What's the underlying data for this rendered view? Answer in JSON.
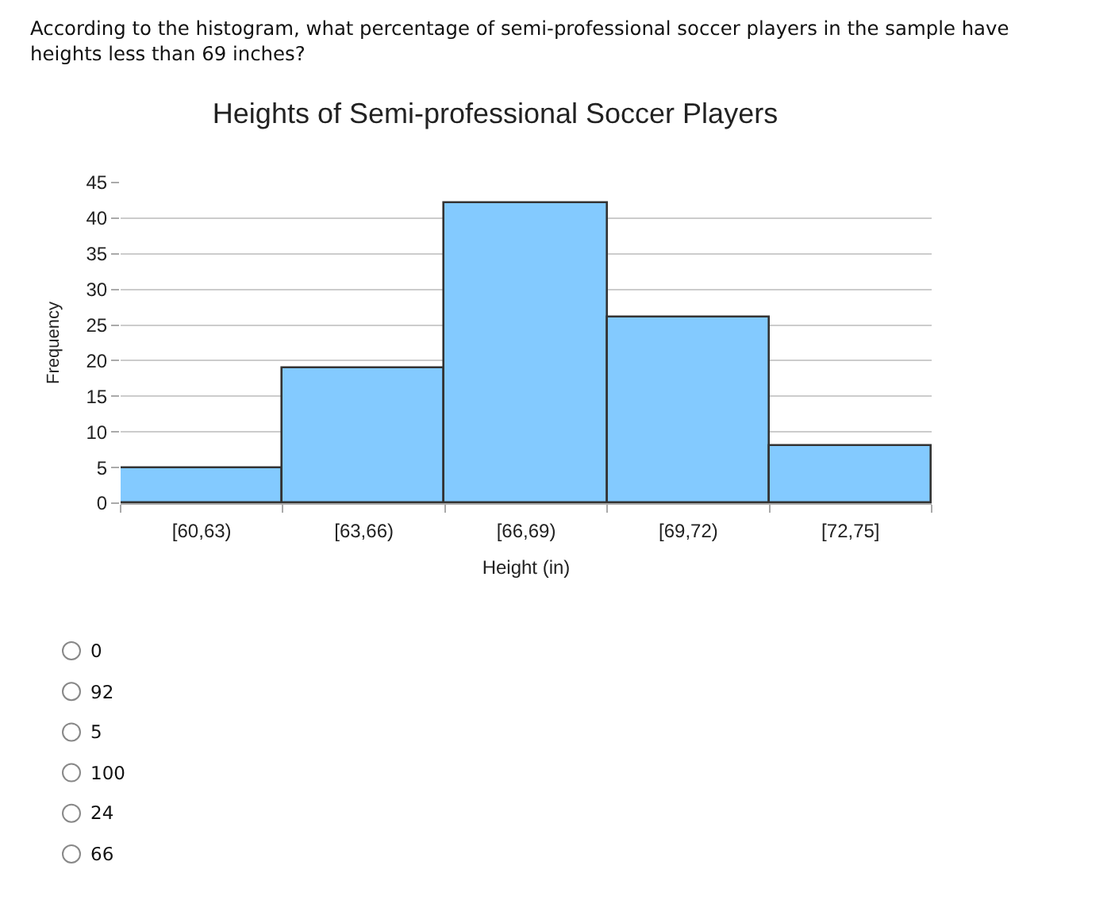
{
  "chart_data": {
    "type": "histogram",
    "title": "Heights of Semi-professional Soccer Players",
    "xlabel": "Height (in)",
    "ylabel": "Frequency",
    "categories": [
      "[60,63)",
      "[63,66)",
      "[66,69)",
      "[69,72)",
      "[72,75]"
    ],
    "values": [
      5,
      19,
      42,
      26,
      8
    ],
    "color": "#83caff",
    "ylim": [
      0,
      45
    ],
    "yticks": [
      0,
      5,
      10,
      15,
      20,
      25,
      30,
      35,
      40,
      45
    ],
    "grid": "y",
    "annotations": [
      "According to the histogram, what percentage of semi-professional soccer players in the sample have heights less than 69 inches?",
      "0",
      "92",
      "5",
      "100",
      "24",
      "66"
    ]
  }
}
